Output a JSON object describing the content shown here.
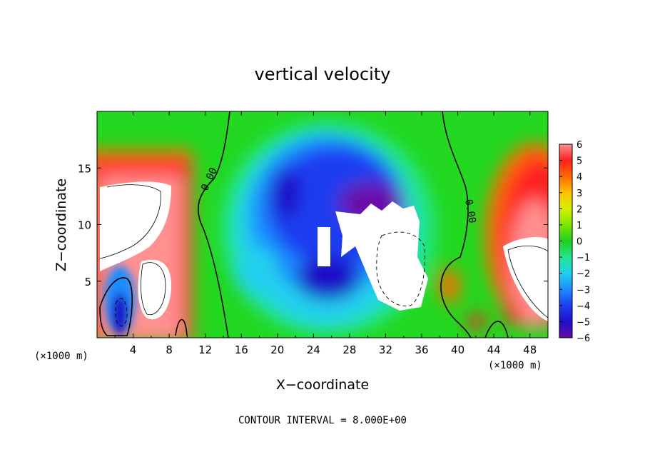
{
  "chart_data": {
    "type": "heatmap",
    "title": "vertical velocity",
    "xlabel": "X−coordinate",
    "ylabel": "Z−coordinate",
    "x_unit": "(×1000 m)",
    "z_unit": "(×1000 m)",
    "xlim": [
      0,
      50
    ],
    "ylim": [
      0,
      20
    ],
    "x_ticks": [
      4,
      8,
      12,
      16,
      20,
      24,
      28,
      32,
      36,
      40,
      44,
      48
    ],
    "y_ticks": [
      5,
      10,
      15
    ],
    "colorbar": {
      "ticks": [
        6,
        5,
        4,
        3,
        2,
        1,
        0,
        -1,
        -2,
        -3,
        -4,
        -5,
        -6
      ],
      "tick_labels": [
        "6",
        "5",
        "4",
        "3",
        "2",
        "1",
        "0",
        "−1",
        "−2",
        "−3",
        "−4",
        "−5",
        "−6"
      ],
      "range": [
        -6,
        6
      ]
    },
    "contour_label": "0.00",
    "footer": "CONTOUR INTERVAL = 8.000E+00",
    "colors": {
      "neg6": "#6a0aa8",
      "neg5": "#1e10c8",
      "neg4": "#1f3cf0",
      "neg3": "#1e8cff",
      "neg2": "#20d0ee",
      "neg1": "#22e690",
      "zero": "#20d020",
      "pos1": "#7ce600",
      "pos2": "#d8ee00",
      "pos3": "#ffc000",
      "pos4": "#ff6a00",
      "pos5": "#ff2020",
      "pos6": "#ff9090"
    }
  }
}
